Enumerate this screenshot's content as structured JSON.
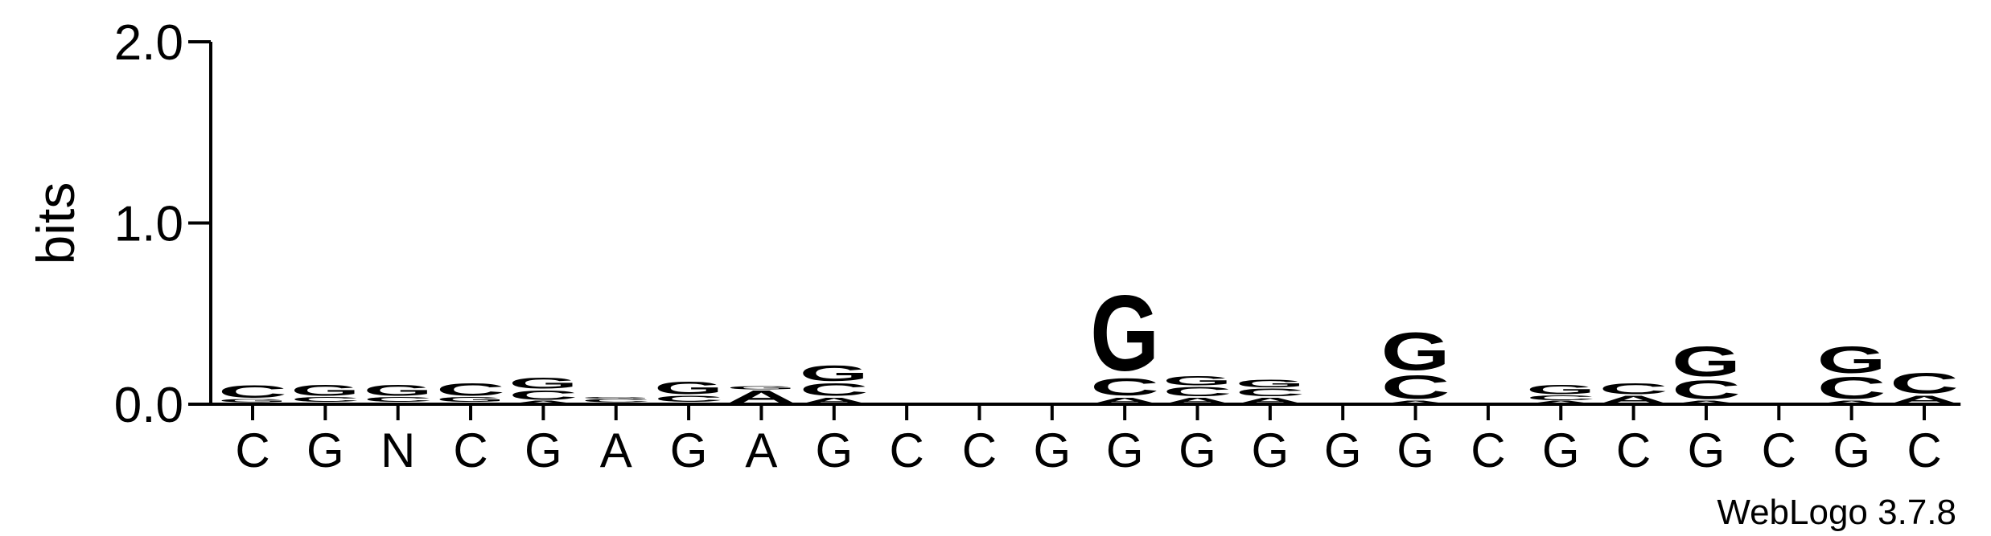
{
  "chart_data": {
    "type": "logo",
    "y_label": "bits",
    "footer": "WebLogo 3.7.8",
    "ylim": [
      0,
      2
    ],
    "yticks": [
      {
        "value": 0,
        "label": "0.0"
      },
      {
        "value": 1,
        "label": "1.0"
      },
      {
        "value": 2,
        "label": "2.0"
      }
    ],
    "colors": {
      "A": "#ff8c00",
      "C": "#0000ff",
      "G": "#0000ff",
      "T": "#ff8c00"
    },
    "categories": [
      "C",
      "G",
      "N",
      "C",
      "G",
      "A",
      "G",
      "A",
      "G",
      "C",
      "C",
      "G",
      "G",
      "G",
      "G",
      "G",
      "G",
      "C",
      "G",
      "C",
      "G",
      "C",
      "G",
      "C"
    ],
    "stacks": [
      [
        {
          "letter": "A",
          "value": 0.01
        },
        {
          "letter": "G",
          "value": 0.02
        },
        {
          "letter": "C",
          "value": 0.08
        }
      ],
      [
        {
          "letter": "A",
          "value": 0.01
        },
        {
          "letter": "C",
          "value": 0.03
        },
        {
          "letter": "G",
          "value": 0.07
        }
      ],
      [
        {
          "letter": "A",
          "value": 0.01
        },
        {
          "letter": "C",
          "value": 0.03
        },
        {
          "letter": "G",
          "value": 0.07
        }
      ],
      [
        {
          "letter": "A",
          "value": 0.01
        },
        {
          "letter": "G",
          "value": 0.03
        },
        {
          "letter": "C",
          "value": 0.08
        }
      ],
      [
        {
          "letter": "A",
          "value": 0.02
        },
        {
          "letter": "C",
          "value": 0.06
        },
        {
          "letter": "G",
          "value": 0.07
        }
      ],
      [
        {
          "letter": "A",
          "value": 0.01
        },
        {
          "letter": "C",
          "value": 0.02
        },
        {
          "letter": "G",
          "value": 0.01
        }
      ],
      [
        {
          "letter": "A",
          "value": 0.01
        },
        {
          "letter": "C",
          "value": 0.04
        },
        {
          "letter": "G",
          "value": 0.08
        }
      ],
      [
        {
          "letter": "A",
          "value": 0.08
        },
        {
          "letter": "G",
          "value": 0.02
        }
      ],
      [
        {
          "letter": "A",
          "value": 0.04
        },
        {
          "letter": "C",
          "value": 0.08
        },
        {
          "letter": "G",
          "value": 0.1
        }
      ],
      [
        {
          "letter": "A",
          "value": 0.01
        }
      ],
      [],
      [
        {
          "letter": "C",
          "value": 0.01
        }
      ],
      [
        {
          "letter": "A",
          "value": 0.04
        },
        {
          "letter": "C",
          "value": 0.11
        },
        {
          "letter": "G",
          "value": 0.48
        }
      ],
      [
        {
          "letter": "A",
          "value": 0.04
        },
        {
          "letter": "C",
          "value": 0.06
        },
        {
          "letter": "G",
          "value": 0.06
        }
      ],
      [
        {
          "letter": "A",
          "value": 0.04
        },
        {
          "letter": "C",
          "value": 0.05
        },
        {
          "letter": "G",
          "value": 0.05
        }
      ],
      [],
      [
        {
          "letter": "A",
          "value": 0.02
        },
        {
          "letter": "C",
          "value": 0.15
        },
        {
          "letter": "G",
          "value": 0.24
        }
      ],
      [],
      [
        {
          "letter": "A",
          "value": 0.02
        },
        {
          "letter": "C",
          "value": 0.03
        },
        {
          "letter": "G",
          "value": 0.06
        }
      ],
      [
        {
          "letter": "A",
          "value": 0.05
        },
        {
          "letter": "C",
          "value": 0.07
        }
      ],
      [
        {
          "letter": "A",
          "value": 0.02
        },
        {
          "letter": "C",
          "value": 0.12
        },
        {
          "letter": "G",
          "value": 0.19
        }
      ],
      [],
      [
        {
          "letter": "A",
          "value": 0.02
        },
        {
          "letter": "C",
          "value": 0.14
        },
        {
          "letter": "G",
          "value": 0.17
        }
      ],
      [
        {
          "letter": "A",
          "value": 0.05
        },
        {
          "letter": "C",
          "value": 0.13
        }
      ]
    ]
  }
}
